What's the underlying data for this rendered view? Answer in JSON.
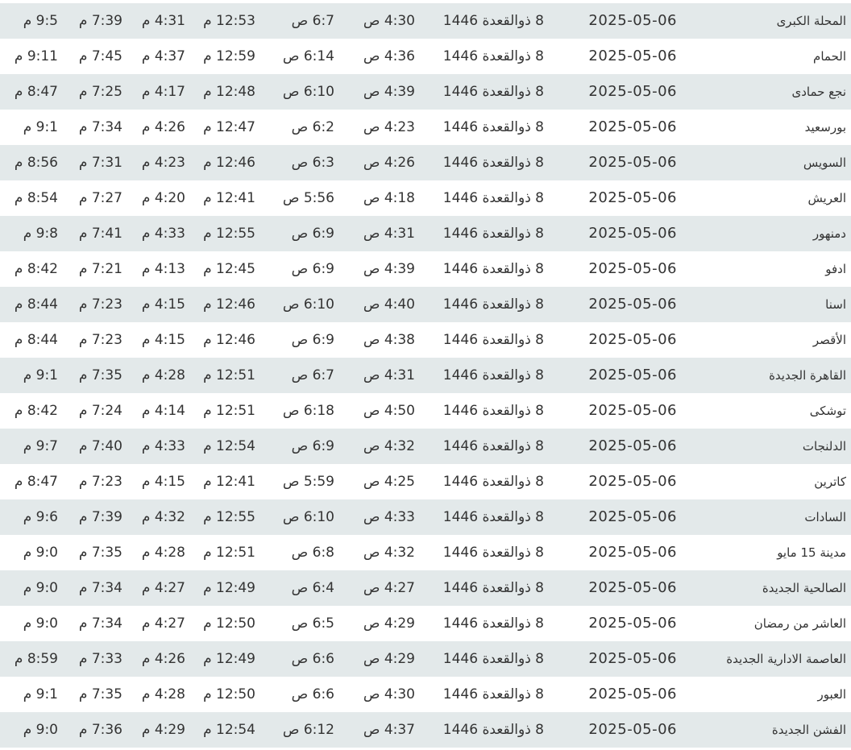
{
  "table": {
    "stripe_color": "#e3e9ea",
    "rows": [
      [
        "المحلة الكبرى",
        "2025-05-06",
        "8 ذوالقعدة 1446",
        "4:30 ص",
        "6:7 ص",
        "12:53 م",
        "4:31 م",
        "7:39 م",
        "9:5 م"
      ],
      [
        "الحمام",
        "2025-05-06",
        "8 ذوالقعدة 1446",
        "4:36 ص",
        "6:14 ص",
        "12:59 م",
        "4:37 م",
        "7:45 م",
        "9:11 م"
      ],
      [
        "نجع حمادى",
        "2025-05-06",
        "8 ذوالقعدة 1446",
        "4:39 ص",
        "6:10 ص",
        "12:48 م",
        "4:17 م",
        "7:25 م",
        "8:47 م"
      ],
      [
        "بورسعيد",
        "2025-05-06",
        "8 ذوالقعدة 1446",
        "4:23 ص",
        "6:2 ص",
        "12:47 م",
        "4:26 م",
        "7:34 م",
        "9:1 م"
      ],
      [
        "السويس",
        "2025-05-06",
        "8 ذوالقعدة 1446",
        "4:26 ص",
        "6:3 ص",
        "12:46 م",
        "4:23 م",
        "7:31 م",
        "8:56 م"
      ],
      [
        "العريش",
        "2025-05-06",
        "8 ذوالقعدة 1446",
        "4:18 ص",
        "5:56 ص",
        "12:41 م",
        "4:20 م",
        "7:27 م",
        "8:54 م"
      ],
      [
        "دمنهور",
        "2025-05-06",
        "8 ذوالقعدة 1446",
        "4:31 ص",
        "6:9 ص",
        "12:55 م",
        "4:33 م",
        "7:41 م",
        "9:8 م"
      ],
      [
        "ادفو",
        "2025-05-06",
        "8 ذوالقعدة 1446",
        "4:39 ص",
        "6:9 ص",
        "12:45 م",
        "4:13 م",
        "7:21 م",
        "8:42 م"
      ],
      [
        "اسنا",
        "2025-05-06",
        "8 ذوالقعدة 1446",
        "4:40 ص",
        "6:10 ص",
        "12:46 م",
        "4:15 م",
        "7:23 م",
        "8:44 م"
      ],
      [
        "الأقصر",
        "2025-05-06",
        "8 ذوالقعدة 1446",
        "4:38 ص",
        "6:9 ص",
        "12:46 م",
        "4:15 م",
        "7:23 م",
        "8:44 م"
      ],
      [
        "القاهرة الجديدة",
        "2025-05-06",
        "8 ذوالقعدة 1446",
        "4:31 ص",
        "6:7 ص",
        "12:51 م",
        "4:28 م",
        "7:35 م",
        "9:1 م"
      ],
      [
        "توشكى",
        "2025-05-06",
        "8 ذوالقعدة 1446",
        "4:50 ص",
        "6:18 ص",
        "12:51 م",
        "4:14 م",
        "7:24 م",
        "8:42 م"
      ],
      [
        "الدلنجات",
        "2025-05-06",
        "8 ذوالقعدة 1446",
        "4:32 ص",
        "6:9 ص",
        "12:54 م",
        "4:33 م",
        "7:40 م",
        "9:7 م"
      ],
      [
        "كاترين",
        "2025-05-06",
        "8 ذوالقعدة 1446",
        "4:25 ص",
        "5:59 ص",
        "12:41 م",
        "4:15 م",
        "7:23 م",
        "8:47 م"
      ],
      [
        "السادات",
        "2025-05-06",
        "8 ذوالقعدة 1446",
        "4:33 ص",
        "6:10 ص",
        "12:55 م",
        "4:32 م",
        "7:39 م",
        "9:6 م"
      ],
      [
        "مدينة 15 مايو",
        "2025-05-06",
        "8 ذوالقعدة 1446",
        "4:32 ص",
        "6:8 ص",
        "12:51 م",
        "4:28 م",
        "7:35 م",
        "9:0 م"
      ],
      [
        "الصالحية الجديدة",
        "2025-05-06",
        "8 ذوالقعدة 1446",
        "4:27 ص",
        "6:4 ص",
        "12:49 م",
        "4:27 م",
        "7:34 م",
        "9:0 م"
      ],
      [
        "العاشر من رمضان",
        "2025-05-06",
        "8 ذوالقعدة 1446",
        "4:29 ص",
        "6:5 ص",
        "12:50 م",
        "4:27 م",
        "7:34 م",
        "9:0 م"
      ],
      [
        "العاصمة الادارية الجديدة",
        "2025-05-06",
        "8 ذوالقعدة 1446",
        "4:29 ص",
        "6:6 ص",
        "12:49 م",
        "4:26 م",
        "7:33 م",
        "8:59 م"
      ],
      [
        "العبور",
        "2025-05-06",
        "8 ذوالقعدة 1446",
        "4:30 ص",
        "6:6 ص",
        "12:50 م",
        "4:28 م",
        "7:35 م",
        "9:1 م"
      ],
      [
        "الفشن الجديدة",
        "2025-05-06",
        "8 ذوالقعدة 1446",
        "4:37 ص",
        "6:12 ص",
        "12:54 م",
        "4:29 م",
        "7:36 م",
        "9:0 م"
      ]
    ]
  }
}
